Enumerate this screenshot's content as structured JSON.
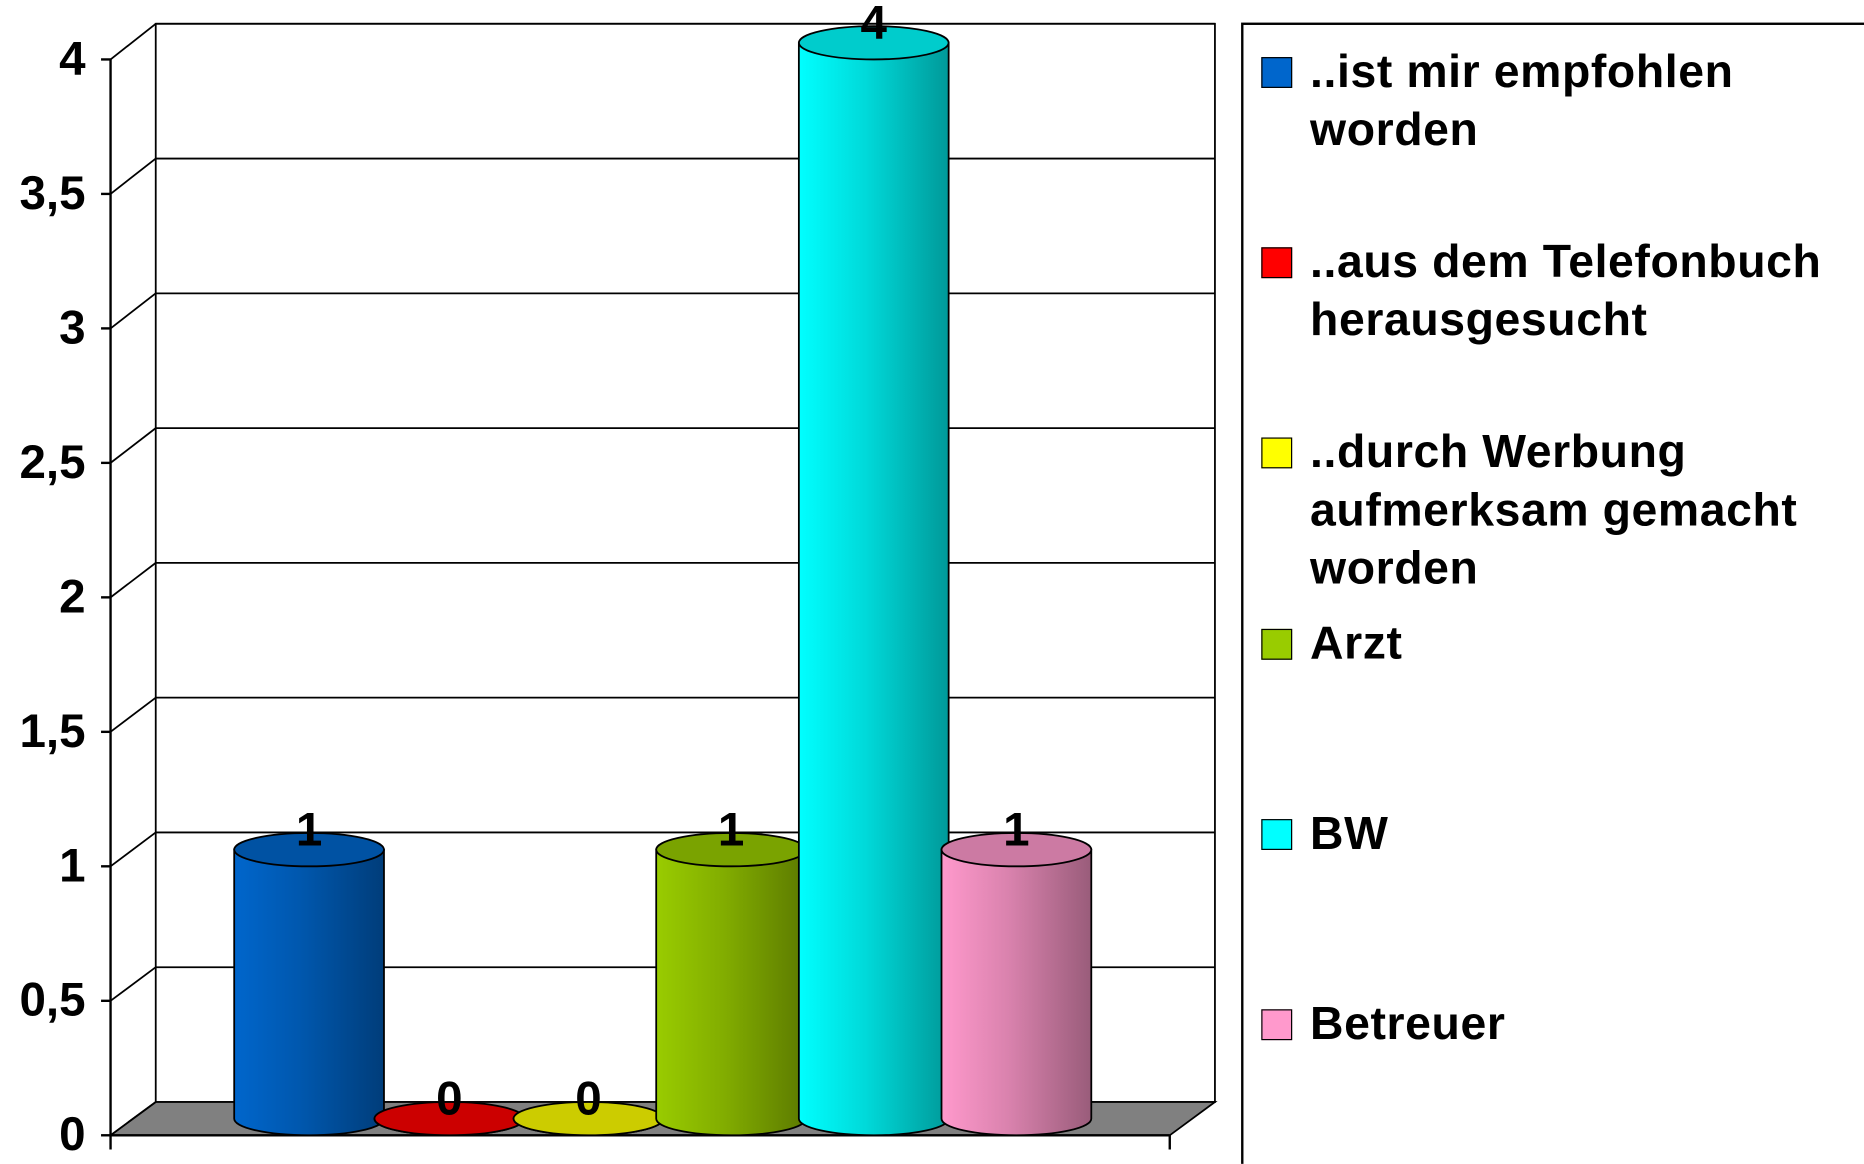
{
  "chart_data": {
    "type": "bar",
    "style": "3d-cylinder",
    "series": [
      {
        "name": "..ist mir empfohlen worden",
        "color": "#0066cc",
        "values": [
          1
        ]
      },
      {
        "name": "..aus dem Telefonbuch herausgesucht",
        "color": "#ff0000",
        "values": [
          0
        ]
      },
      {
        "name": "..durch Werbung aufmerksam gemacht worden",
        "color": "#ffff00",
        "values": [
          0
        ]
      },
      {
        "name": "Arzt",
        "color": "#99cc00",
        "values": [
          1
        ]
      },
      {
        "name": "BW",
        "color": "#00ffff",
        "values": [
          4
        ]
      },
      {
        "name": "Betreuer",
        "color": "#ff99cc",
        "values": [
          1
        ]
      }
    ],
    "ylim": [
      0,
      4
    ],
    "yticks": [
      0,
      {
        "value": 0.5,
        "label": "0,5"
      },
      1,
      {
        "value": 1.5,
        "label": "1,5"
      },
      2,
      {
        "value": 2.5,
        "label": "2,5"
      },
      3,
      {
        "value": 3.5,
        "label": "3,5"
      },
      4
    ],
    "grid": true,
    "legend": "right"
  }
}
